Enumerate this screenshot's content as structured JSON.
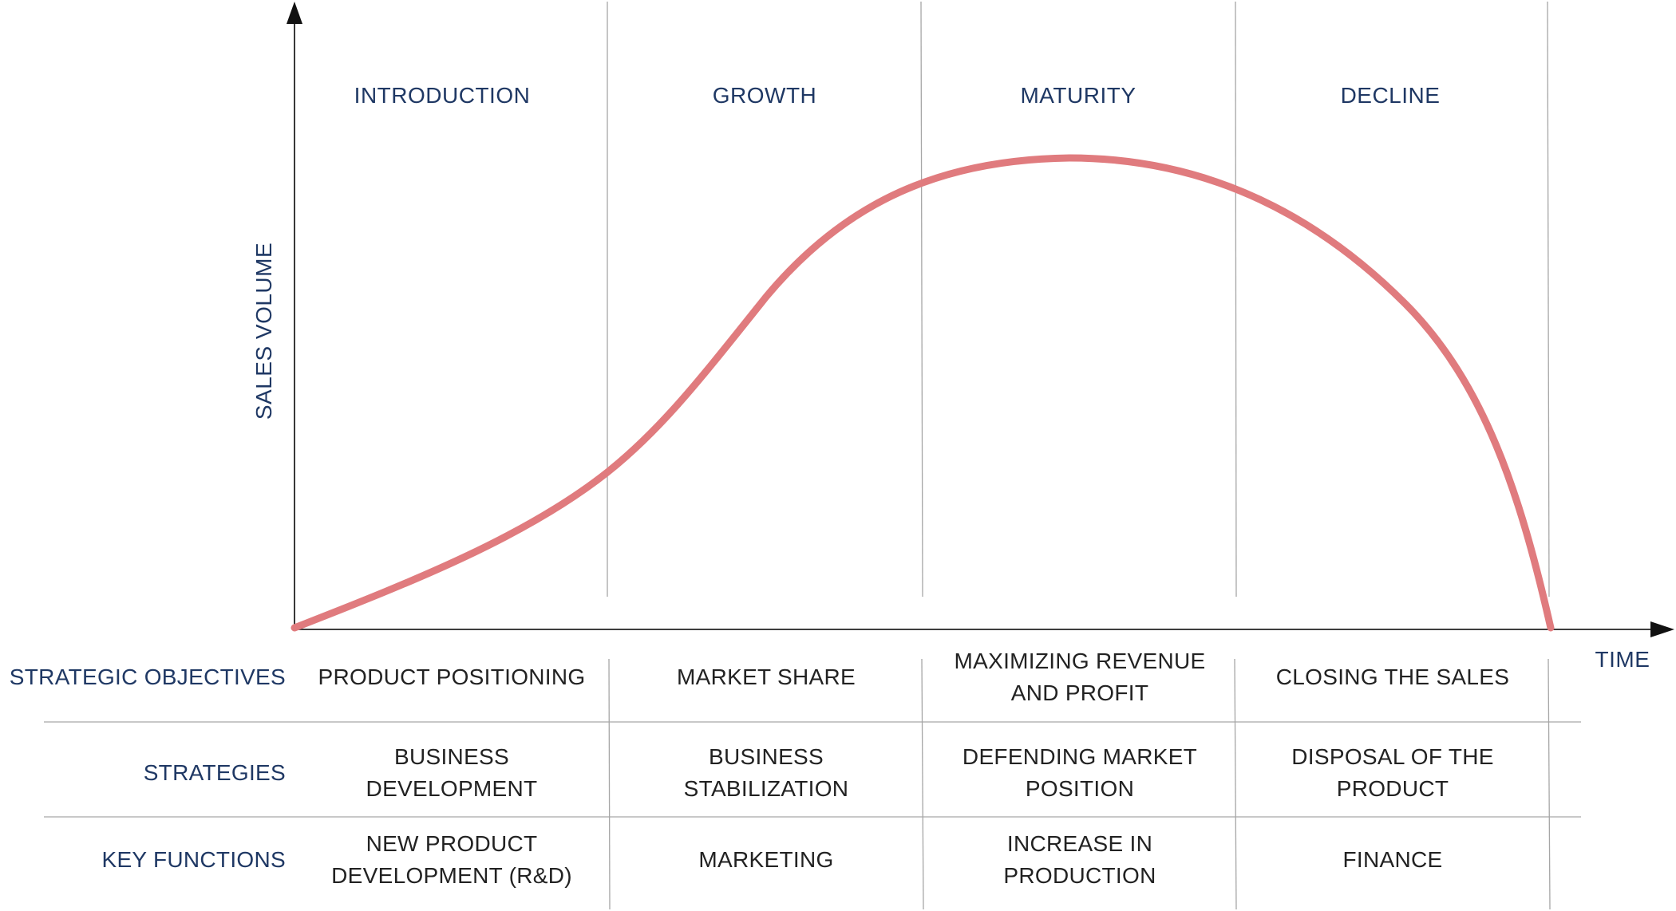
{
  "stages": [
    "INTRODUCTION",
    "GROWTH",
    "MATURITY",
    "DECLINE"
  ],
  "axes": {
    "y_label": "SALES VOLUME",
    "x_label": "TIME"
  },
  "curve": {
    "color": "#e07b7e"
  },
  "table": {
    "rows": [
      {
        "label": "STRATEGIC OBJECTIVES",
        "cells": [
          [
            "PRODUCT POSITIONING"
          ],
          [
            "MARKET SHARE"
          ],
          [
            "MAXIMIZING REVENUE",
            "AND PROFIT"
          ],
          [
            "CLOSING THE SALES"
          ]
        ]
      },
      {
        "label": "STRATEGIES",
        "cells": [
          [
            "BUSINESS",
            "DEVELOPMENT"
          ],
          [
            "BUSINESS",
            "STABILIZATION"
          ],
          [
            "DEFENDING MARKET",
            "POSITION"
          ],
          [
            "DISPOSAL OF THE",
            "PRODUCT"
          ]
        ]
      },
      {
        "label": "KEY FUNCTIONS",
        "cells": [
          [
            "NEW PRODUCT",
            "DEVELOPMENT (R&D)"
          ],
          [
            "MARKETING"
          ],
          [
            "INCREASE IN",
            "PRODUCTION"
          ],
          [
            "FINANCE"
          ]
        ]
      }
    ]
  },
  "colors": {
    "label_text": "#1f3864",
    "body_text": "#222222",
    "divider": "#a6a6a6"
  }
}
